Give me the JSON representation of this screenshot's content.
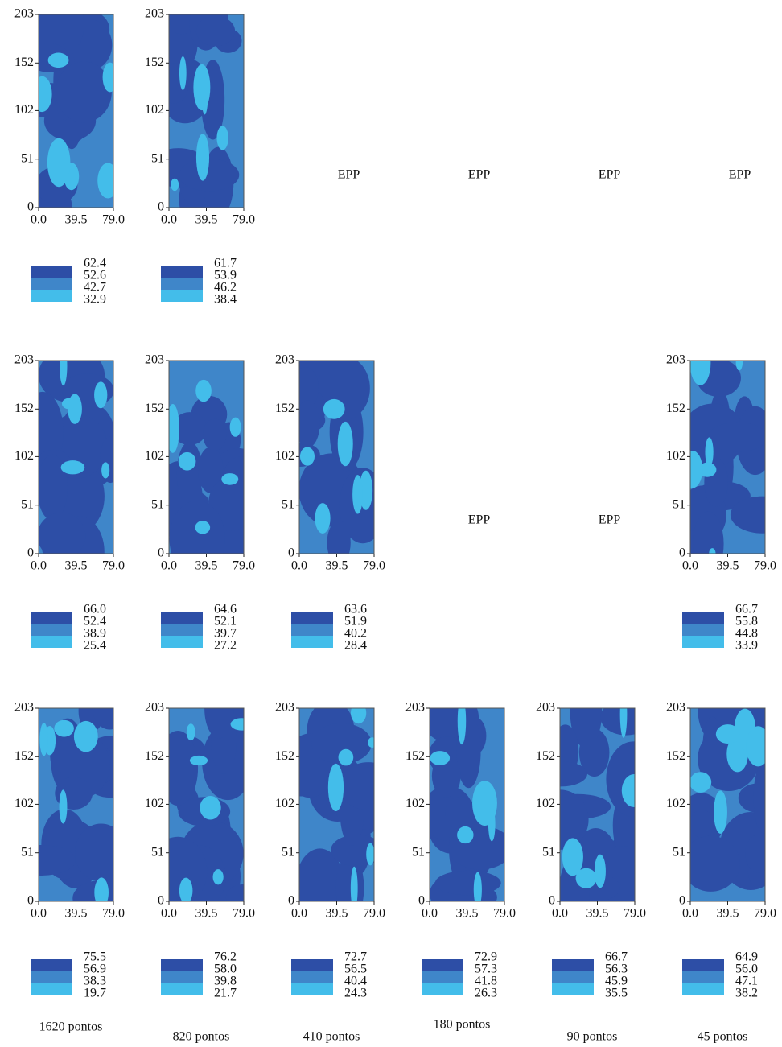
{
  "axes": {
    "xlim": [
      0,
      79
    ],
    "ylim": [
      0,
      203
    ],
    "xticks": [
      {
        "value": 0,
        "label": "0.0"
      },
      39.5,
      {
        "value": 79,
        "label": "79.0"
      }
    ],
    "yticks": [
      0,
      51,
      102,
      152,
      203
    ],
    "colors": [
      "#2d4ea6",
      "#3f86c9",
      "#43bdea"
    ]
  },
  "chart_data": [
    {
      "type": "contour",
      "levels": [
        62.4,
        52.6,
        42.7,
        32.9
      ]
    },
    {
      "type": "contour",
      "levels": [
        61.7,
        53.9,
        46.2,
        38.4
      ]
    },
    {
      "type": "placeholder",
      "text": "EPP"
    },
    {
      "type": "placeholder",
      "text": "EPP"
    },
    {
      "type": "placeholder",
      "text": "EPP"
    },
    {
      "type": "placeholder",
      "text": "EPP"
    },
    {
      "type": "contour",
      "levels": [
        {
          "value": 66,
          "label": "66.0"
        },
        52.4,
        38.9,
        25.4
      ]
    },
    {
      "type": "contour",
      "levels": [
        64.6,
        52.1,
        39.7,
        27.2
      ]
    },
    {
      "type": "contour",
      "levels": [
        63.6,
        51.9,
        40.2,
        28.4
      ]
    },
    {
      "type": "placeholder",
      "text": "EPP"
    },
    {
      "type": "placeholder",
      "text": "EPP"
    },
    {
      "type": "contour",
      "levels": [
        66.7,
        55.8,
        44.8,
        33.9
      ]
    },
    {
      "type": "contour",
      "levels": [
        75.5,
        56.9,
        38.3,
        19.7
      ]
    },
    {
      "type": "contour",
      "levels": [
        76.2,
        {
          "value": 58,
          "label": "58.0"
        },
        39.8,
        21.7
      ]
    },
    {
      "type": "contour",
      "levels": [
        72.7,
        56.5,
        40.4,
        24.3
      ]
    },
    {
      "type": "contour",
      "levels": [
        72.9,
        57.3,
        41.8,
        26.3
      ]
    },
    {
      "type": "contour",
      "levels": [
        66.7,
        56.3,
        45.9,
        35.5
      ]
    },
    {
      "type": "contour",
      "levels": [
        64.9,
        {
          "value": 56,
          "label": "56.0"
        },
        47.1,
        38.2
      ]
    }
  ],
  "column_labels": [
    "1620 pontos",
    "820 pontos",
    "410 pontos",
    "180 pontos",
    "90 pontos",
    "45 pontos"
  ]
}
